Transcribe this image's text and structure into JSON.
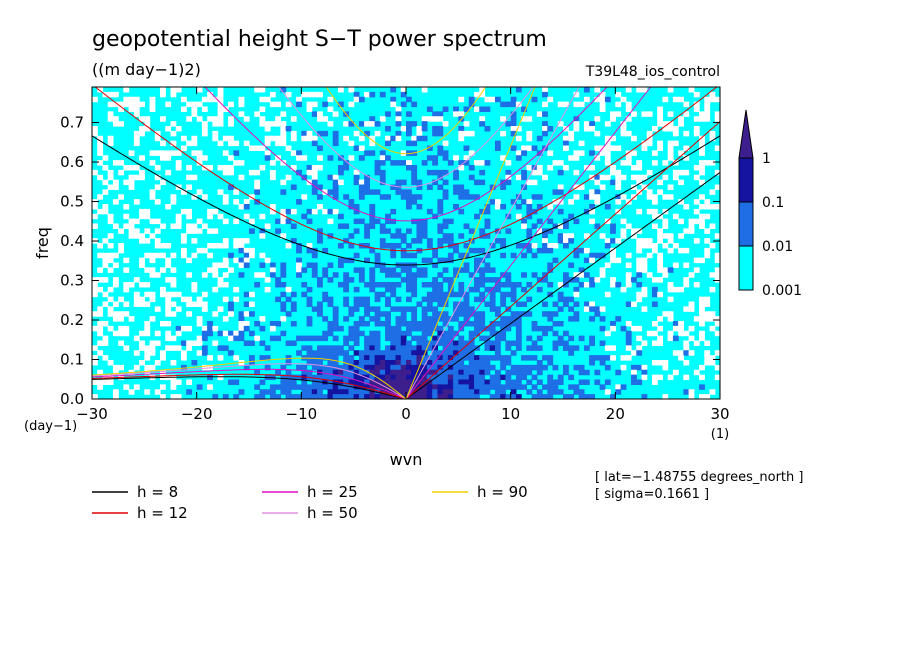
{
  "chart_data": {
    "type": "heatmap",
    "title": "geopotential height S−T power spectrum",
    "subtitle": "((m day−1)2)",
    "run_label": "T39L48_ios_control",
    "xlabel": "wvn",
    "ylabel": "freq",
    "x_unit": "(1)",
    "y_unit": "(day−1)",
    "xlim": [
      -30,
      30
    ],
    "ylim": [
      0,
      0.79
    ],
    "x_ticks": [
      -30,
      -20,
      -10,
      0,
      10,
      20,
      30
    ],
    "x_tick_labels": [
      "−30",
      "−20",
      "−10",
      "0",
      "10",
      "20",
      "30"
    ],
    "y_ticks": [
      0,
      0.1,
      0.2,
      0.3,
      0.4,
      0.5,
      0.6,
      0.7
    ],
    "y_tick_labels": [
      "0.0",
      "0.1",
      "0.2",
      "0.3",
      "0.4",
      "0.5",
      "0.6",
      "0.7"
    ],
    "colorbar": {
      "levels": [
        0.001,
        0.01,
        0.1,
        1
      ],
      "labels": [
        "0.001",
        "0.01",
        "0.1",
        "1"
      ],
      "colors": [
        "#ffffff",
        "#00ffff",
        "#1e6ee6",
        "#1414a0",
        "#3c1e8c"
      ]
    },
    "dispersion_curves": [
      {
        "name": "h =  8",
        "h": 8,
        "color": "#000000"
      },
      {
        "name": "h = 12",
        "h": 12,
        "color": "#e00000"
      },
      {
        "name": "h = 25",
        "h": 25,
        "color": "#e010c0"
      },
      {
        "name": "h = 50",
        "h": 50,
        "color": "#e090e0"
      },
      {
        "name": "h = 90",
        "h": 90,
        "color": "#f0d000"
      }
    ],
    "annotations": [
      "[ lat=−1.48755 degrees_north ]",
      "[ sigma=0.1661 ]"
    ]
  }
}
